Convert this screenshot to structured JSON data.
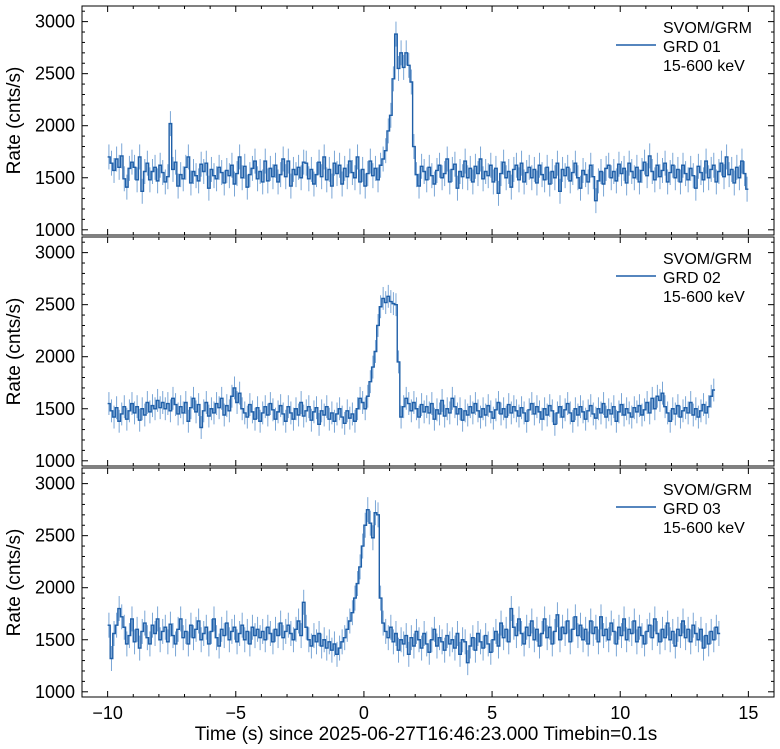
{
  "figure": {
    "xlabel": "Time (s) since 2025-06-27T16:46:23.000 Timebin=0.1s",
    "line_color": "#1f5fa8",
    "errorbar_color": "#7aa6d6"
  },
  "chart_data": [
    {
      "type": "line",
      "drawstyle": "steps-mid",
      "detector": "GRD 01",
      "ylabel": "Rate (cnts/s)",
      "legend": [
        "SVOM/GRM",
        "GRD 01",
        "15-600 keV"
      ],
      "legend_position": "top-right",
      "xlim": [
        -11,
        16
      ],
      "ylim": [
        950,
        3150
      ],
      "xticks": [
        -10,
        -5,
        0,
        5,
        10,
        15
      ],
      "yticks": [
        1000,
        1500,
        2000,
        2500,
        3000
      ],
      "x_start": -9.95,
      "x_step": 0.1,
      "y_error": 120,
      "y": [
        1700,
        1640,
        1570,
        1680,
        1600,
        1710,
        1490,
        1410,
        1590,
        1650,
        1600,
        1480,
        1700,
        1370,
        1560,
        1640,
        1480,
        1560,
        1600,
        1470,
        1620,
        1550,
        1460,
        1510,
        2020,
        1580,
        1650,
        1420,
        1530,
        1490,
        1600,
        1700,
        1450,
        1560,
        1520,
        1470,
        1630,
        1560,
        1640,
        1400,
        1580,
        1520,
        1490,
        1600,
        1550,
        1450,
        1570,
        1520,
        1620,
        1440,
        1540,
        1700,
        1500,
        1610,
        1410,
        1530,
        1590,
        1660,
        1490,
        1560,
        1460,
        1660,
        1470,
        1590,
        1510,
        1620,
        1460,
        1530,
        1680,
        1510,
        1660,
        1420,
        1580,
        1530,
        1600,
        1500,
        1650,
        1640,
        1490,
        1580,
        1440,
        1530,
        1650,
        1510,
        1700,
        1480,
        1580,
        1420,
        1640,
        1540,
        1620,
        1440,
        1590,
        1510,
        1660,
        1550,
        1500,
        1700,
        1460,
        1580,
        1420,
        1540,
        1660,
        1520,
        1590,
        1480,
        1620,
        1680,
        1760,
        1950,
        2100,
        2450,
        2880,
        2550,
        2700,
        2560,
        2700,
        2580,
        2420,
        1800,
        1530,
        1420,
        1610,
        1560,
        1480,
        1600,
        1520,
        1440,
        1570,
        1620,
        1500,
        1540,
        1680,
        1460,
        1580,
        1630,
        1400,
        1560,
        1510,
        1660,
        1500,
        1590,
        1460,
        1610,
        1540,
        1680,
        1490,
        1560,
        1520,
        1620,
        1460,
        1590,
        1350,
        1540,
        1650,
        1500,
        1560,
        1410,
        1580,
        1620,
        1480,
        1640,
        1460,
        1550,
        1600,
        1500,
        1580,
        1450,
        1620,
        1530,
        1480,
        1600,
        1440,
        1560,
        1500,
        1640,
        1370,
        1580,
        1520,
        1600,
        1470,
        1550,
        1640,
        1500,
        1400,
        1570,
        1530,
        1460,
        1620,
        1510,
        1280,
        1470,
        1560,
        1440,
        1590,
        1620,
        1500,
        1560,
        1470,
        1630,
        1540,
        1590,
        1450,
        1640,
        1560,
        1500,
        1600,
        1460,
        1570,
        1650,
        1520,
        1710,
        1560,
        1480,
        1620,
        1510,
        1570,
        1640,
        1460,
        1550,
        1620,
        1500,
        1580,
        1460,
        1620,
        1540,
        1480,
        1590,
        1520,
        1400,
        1610,
        1550,
        1480,
        1660,
        1500,
        1580,
        1620,
        1460,
        1560,
        1640,
        1510,
        1700,
        1530,
        1580,
        1450,
        1600,
        1500,
        1660,
        1540,
        1390
      ]
    },
    {
      "type": "line",
      "drawstyle": "steps-mid",
      "detector": "GRD 02",
      "ylabel": "Rate (cnts/s)",
      "legend": [
        "SVOM/GRM",
        "GRD 02",
        "15-600 keV"
      ],
      "legend_position": "top-right",
      "xlim": [
        -11,
        16
      ],
      "ylim": [
        950,
        3150
      ],
      "xticks": [
        -10,
        -5,
        0,
        5,
        10,
        15
      ],
      "yticks": [
        1000,
        1500,
        2000,
        2500,
        3000
      ],
      "x_start": -9.95,
      "x_step": 0.1,
      "y_error": 110,
      "y": [
        1550,
        1480,
        1420,
        1510,
        1380,
        1450,
        1520,
        1400,
        1480,
        1550,
        1460,
        1520,
        1390,
        1500,
        1440,
        1560,
        1470,
        1530,
        1500,
        1580,
        1510,
        1560,
        1500,
        1550,
        1480,
        1600,
        1540,
        1450,
        1520,
        1460,
        1560,
        1380,
        1510,
        1600,
        1470,
        1540,
        1320,
        1480,
        1560,
        1430,
        1500,
        1460,
        1550,
        1510,
        1600,
        1440,
        1530,
        1480,
        1620,
        1700,
        1560,
        1650,
        1500,
        1460,
        1420,
        1540,
        1470,
        1400,
        1510,
        1380,
        1460,
        1520,
        1440,
        1550,
        1490,
        1400,
        1470,
        1530,
        1450,
        1380,
        1520,
        1460,
        1400,
        1500,
        1440,
        1560,
        1430,
        1480,
        1520,
        1390,
        1470,
        1510,
        1350,
        1480,
        1440,
        1520,
        1400,
        1460,
        1380,
        1450,
        1500,
        1420,
        1360,
        1480,
        1410,
        1450,
        1380,
        1500,
        1600,
        1560,
        1500,
        1620,
        1760,
        1900,
        2050,
        2300,
        2480,
        2560,
        2520,
        2580,
        2530,
        2510,
        2500,
        1950,
        1420,
        1520,
        1600,
        1550,
        1480,
        1560,
        1500,
        1420,
        1540,
        1470,
        1520,
        1460,
        1550,
        1400,
        1490,
        1450,
        1580,
        1430,
        1500,
        1460,
        1600,
        1520,
        1450,
        1500,
        1390,
        1480,
        1440,
        1520,
        1460,
        1550,
        1480,
        1420,
        1500,
        1440,
        1530,
        1470,
        1410,
        1490,
        1560,
        1450,
        1500,
        1420,
        1540,
        1460,
        1520,
        1480,
        1430,
        1510,
        1460,
        1380,
        1490,
        1550,
        1450,
        1520,
        1470,
        1400,
        1500,
        1440,
        1530,
        1480,
        1350,
        1460,
        1520,
        1420,
        1490,
        1550,
        1460,
        1380,
        1500,
        1440,
        1520,
        1470,
        1400,
        1480,
        1530,
        1450,
        1410,
        1500,
        1460,
        1550,
        1420,
        1490,
        1450,
        1520,
        1380,
        1470,
        1540,
        1440,
        1500,
        1460,
        1420,
        1510,
        1470,
        1530,
        1440,
        1490,
        1560,
        1460,
        1600,
        1500,
        1620,
        1580,
        1650,
        1520,
        1460,
        1380,
        1500,
        1450,
        1530,
        1420,
        1480,
        1510,
        1460,
        1560,
        1440,
        1500,
        1420,
        1480,
        1540,
        1460,
        1520,
        1620,
        1680
      ]
    },
    {
      "type": "line",
      "drawstyle": "steps-mid",
      "detector": "GRD 03",
      "ylabel": "Rate (cnts/s)",
      "legend": [
        "SVOM/GRM",
        "GRD 03",
        "15-600 keV"
      ],
      "legend_position": "top-right",
      "xlim": [
        -11,
        16
      ],
      "ylim": [
        950,
        3150
      ],
      "xticks": [
        -10,
        -5,
        0,
        5,
        10,
        15
      ],
      "yticks": [
        1000,
        1500,
        2000,
        2500,
        3000
      ],
      "x_start": -9.95,
      "x_step": 0.1,
      "y_error": 120,
      "y": [
        1640,
        1320,
        1560,
        1640,
        1800,
        1720,
        1620,
        1460,
        1540,
        1700,
        1480,
        1600,
        1420,
        1580,
        1660,
        1520,
        1460,
        1640,
        1560,
        1700,
        1500,
        1580,
        1620,
        1480,
        1650,
        1540,
        1460,
        1600,
        1700,
        1520,
        1580,
        1460,
        1640,
        1520,
        1600,
        1680,
        1500,
        1560,
        1620,
        1460,
        1580,
        1700,
        1520,
        1440,
        1600,
        1540,
        1660,
        1500,
        1580,
        1620,
        1480,
        1560,
        1640,
        1500,
        1580,
        1460,
        1620,
        1540,
        1600,
        1520,
        1580,
        1500,
        1620,
        1560,
        1480,
        1600,
        1540,
        1660,
        1520,
        1580,
        1640,
        1560,
        1500,
        1600,
        1680,
        1540,
        1860,
        1620,
        1500,
        1440,
        1540,
        1480,
        1560,
        1440,
        1500,
        1420,
        1480,
        1400,
        1460,
        1360,
        1420,
        1480,
        1520,
        1600,
        1680,
        1760,
        1900,
        2040,
        2200,
        2400,
        2600,
        2750,
        2620,
        2480,
        2720,
        2700,
        1900,
        1660,
        1580,
        1520,
        1620,
        1480,
        1560,
        1400,
        1500,
        1460,
        1540,
        1360,
        1520,
        1440,
        1580,
        1500,
        1420,
        1560,
        1460,
        1380,
        1500,
        1600,
        1440,
        1520,
        1480,
        1400,
        1540,
        1460,
        1500,
        1420,
        1560,
        1360,
        1500,
        1480,
        1280,
        1440,
        1520,
        1400,
        1560,
        1480,
        1420,
        1540,
        1460,
        1380,
        1500,
        1580,
        1440,
        1660,
        1520,
        1600,
        1480,
        1800,
        1620,
        1540,
        1700,
        1560,
        1460,
        1620,
        1540,
        1680,
        1500,
        1600,
        1440,
        1560,
        1700,
        1520,
        1620,
        1460,
        1580,
        1740,
        1500,
        1620,
        1560,
        1680,
        1480,
        1600,
        1720,
        1540,
        1640,
        1500,
        1600,
        1460,
        1680,
        1560,
        1620,
        1480,
        1720,
        1540,
        1600,
        1500,
        1660,
        1580,
        1460,
        1620,
        1540,
        1700,
        1500,
        1600,
        1560,
        1680,
        1480,
        1620,
        1540,
        1460,
        1580,
        1640,
        1520,
        1700,
        1560,
        1480,
        1600,
        1520,
        1660,
        1500,
        1580,
        1440,
        1600,
        1540,
        1680,
        1520,
        1600,
        1480,
        1640,
        1560,
        1500,
        1600,
        1420,
        1540,
        1460,
        1580,
        1500,
        1620,
        1560
      ]
    }
  ]
}
